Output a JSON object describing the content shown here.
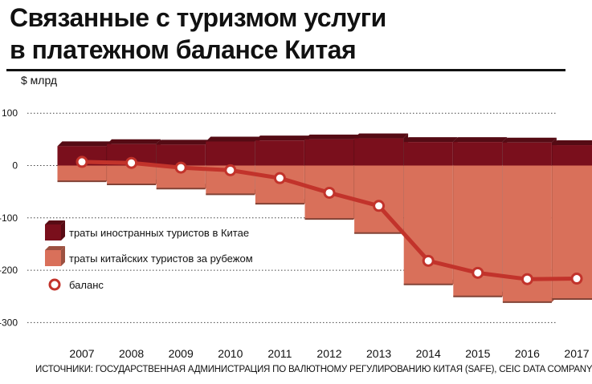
{
  "title_line1": "Связанные с туризмом услуги",
  "title_line2": "в платежном балансе Китая",
  "unit_label": "$ млрд",
  "source_text": "ИСТОЧНИКИ: ГОСУДАРСТВЕННАЯ АДМИНИСТРАЦИЯ ПО ВАЛЮТНОМУ РЕГУЛИРОВАНИЮ КИТАЯ (SAFE), CEIC DATA COMPANY",
  "colors": {
    "receipts": "#7a0f1c",
    "spending": "#d9705a",
    "balance": "#c2332b",
    "grid": "#444444"
  },
  "chart_data": {
    "type": "bar",
    "categories": [
      "2007",
      "2008",
      "2009",
      "2010",
      "2011",
      "2012",
      "2013",
      "2014",
      "2015",
      "2016",
      "2017"
    ],
    "series": [
      {
        "name": "траты иностранных туристов в Китае",
        "kind": "bar",
        "values": [
          37,
          41,
          40,
          46,
          48,
          50,
          52,
          45,
          45,
          44,
          39
        ]
      },
      {
        "name": "траты китайских туристов за рубежом",
        "kind": "bar",
        "values": [
          -30,
          -36,
          -44,
          -55,
          -73,
          -102,
          -129,
          -227,
          -250,
          -261,
          -255
        ]
      },
      {
        "name": "баланс",
        "kind": "line",
        "values": [
          7,
          5,
          -4,
          -9,
          -24,
          -52,
          -77,
          -182,
          -205,
          -217,
          -216
        ]
      }
    ],
    "yticks": [
      100,
      0,
      -100,
      -200,
      -300
    ],
    "ylim": [
      -320,
      110
    ],
    "legend_position": "left-middle",
    "grid": "horizontal-dotted"
  }
}
